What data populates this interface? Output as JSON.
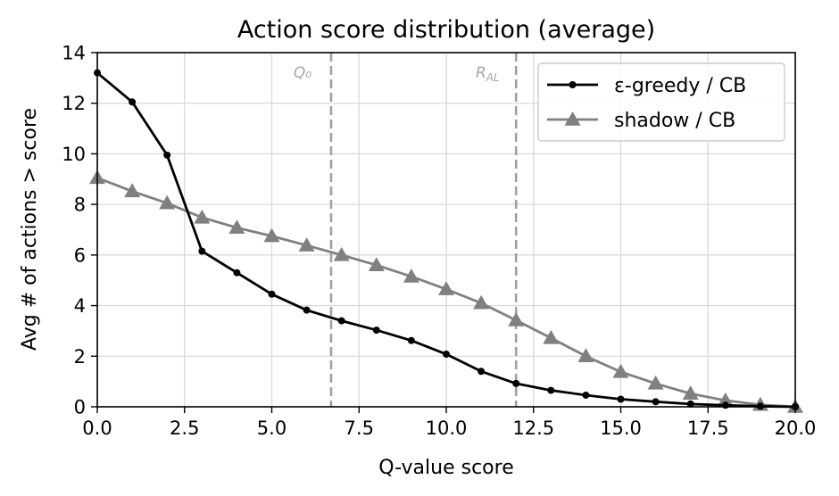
{
  "chart_data": {
    "type": "line",
    "title": "Action score distribution (average)",
    "xlabel": "Q-value score",
    "ylabel": "Avg # of actions > score",
    "xlim": [
      0,
      20
    ],
    "ylim": [
      0,
      14
    ],
    "xticks": [
      0,
      2.5,
      5,
      7.5,
      10,
      12.5,
      15,
      17.5,
      20
    ],
    "xtick_labels": [
      "0.0",
      "2.5",
      "5.0",
      "7.5",
      "10.0",
      "12.5",
      "15.0",
      "17.5",
      "20.0"
    ],
    "yticks": [
      0,
      2,
      4,
      6,
      8,
      10,
      12,
      14
    ],
    "ytick_labels": [
      "0",
      "2",
      "4",
      "6",
      "8",
      "10",
      "12",
      "14"
    ],
    "grid": true,
    "legend_position": "top-right",
    "vlines": [
      {
        "x": 6.7,
        "label": "Q₀",
        "color": "#a0a0a0",
        "style": "dashed"
      },
      {
        "x": 12.0,
        "label": "R_AL",
        "color": "#a0a0a0",
        "style": "dashed"
      }
    ],
    "series": [
      {
        "name": "ε-greedy / CB",
        "color": "#000000",
        "marker": "circle",
        "x": [
          0,
          1,
          2,
          3,
          4,
          5,
          6,
          7,
          8,
          9,
          10,
          11,
          12,
          13,
          14,
          15,
          16,
          17,
          18,
          19,
          20
        ],
        "values": [
          13.2,
          12.05,
          9.95,
          6.15,
          5.3,
          4.45,
          3.82,
          3.4,
          3.03,
          2.62,
          2.08,
          1.4,
          0.92,
          0.65,
          0.46,
          0.3,
          0.2,
          0.11,
          0.06,
          0.02,
          0.0
        ]
      },
      {
        "name": "shadow / CB",
        "color": "#808080",
        "marker": "triangle",
        "x": [
          0,
          1,
          2,
          3,
          4,
          5,
          6,
          7,
          8,
          9,
          10,
          11,
          12,
          13,
          14,
          15,
          16,
          17,
          18,
          19,
          20
        ],
        "values": [
          9.05,
          8.52,
          8.05,
          7.48,
          7.08,
          6.75,
          6.38,
          6.0,
          5.6,
          5.15,
          4.65,
          4.1,
          3.42,
          2.72,
          2.0,
          1.38,
          0.92,
          0.52,
          0.25,
          0.08,
          0.0
        ]
      }
    ]
  }
}
